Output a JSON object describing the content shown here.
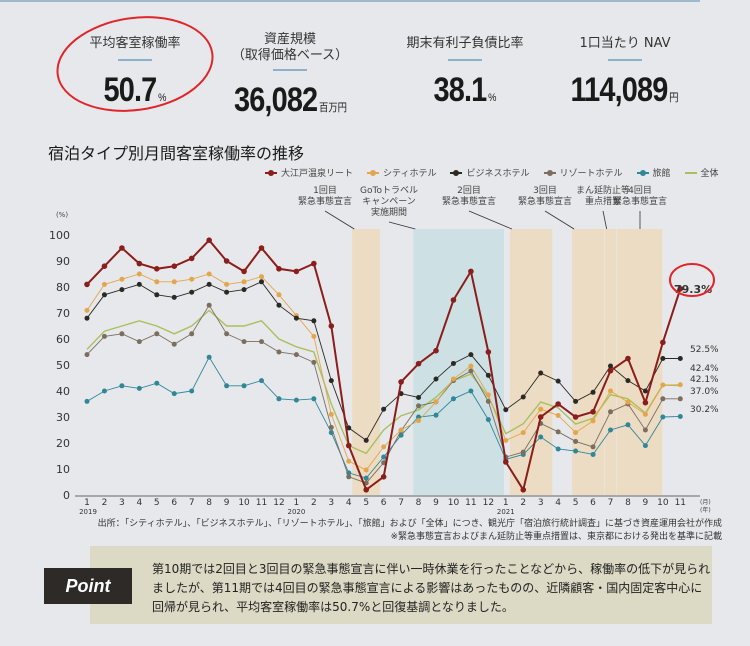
{
  "kpis": [
    {
      "label": "平均客室稼働率",
      "value": "50.7",
      "unit": "%"
    },
    {
      "label": "資産規模\n（取得価格ベース）",
      "value": "36,082",
      "unit": "百万円"
    },
    {
      "label": "期末有利子負債比率",
      "value": "38.1",
      "unit": "%"
    },
    {
      "label": "1口当たり NAV",
      "value": "114,089",
      "unit": "円"
    }
  ],
  "chart_data": {
    "type": "line",
    "title": "宿泊タイプ別月間客室稼働率の推移",
    "ylabel": "(%)",
    "ylim": [
      0,
      100
    ],
    "y_ticks": [
      "0",
      "10",
      "20",
      "30",
      "40",
      "50",
      "60",
      "70",
      "80",
      "90",
      "100"
    ],
    "x_tick_labels": [
      "1",
      "2",
      "3",
      "4",
      "5",
      "6",
      "7",
      "8",
      "9",
      "10",
      "11",
      "12",
      "1",
      "2",
      "3",
      "4",
      "5",
      "6",
      "7",
      "8",
      "9",
      "10",
      "11",
      "12",
      "1",
      "2",
      "3",
      "4",
      "5",
      "6",
      "7",
      "8",
      "9",
      "10",
      "11"
    ],
    "x_unit": "(月)",
    "year_unit": "(年)",
    "year_labels": [
      {
        "label": "2019",
        "at": 0
      },
      {
        "label": "2020",
        "at": 12
      },
      {
        "label": "2021",
        "at": 24
      }
    ],
    "series": [
      {
        "name": "大江戸温泉リート",
        "color": "#8b1d1a",
        "markers": true,
        "values": [
          81,
          88,
          95,
          89,
          87,
          88,
          91,
          98,
          90,
          86,
          95,
          87,
          86,
          89,
          65,
          19,
          2,
          7,
          43.5,
          50.5,
          55.5,
          75,
          86,
          55,
          12.7,
          2,
          30,
          35,
          30,
          32,
          47.8,
          52.5,
          35.5,
          58.7,
          79.3
        ]
      },
      {
        "name": "シティホテル",
        "color": "#e3a64a",
        "markers": true,
        "values": [
          71,
          81,
          83,
          85,
          82,
          82,
          83,
          85,
          81,
          82,
          84,
          77,
          69,
          61,
          31,
          13,
          9.6,
          18.5,
          25,
          28.6,
          35.8,
          44.6,
          49.6,
          38.5,
          21,
          24,
          33,
          30.6,
          24,
          28.5,
          40,
          35.7,
          31,
          42.3,
          42.4
        ]
      },
      {
        "name": "ビジネスホテル",
        "color": "#2b2a22",
        "markers": true,
        "values": [
          68,
          77,
          79,
          81,
          77,
          76,
          78,
          81,
          78,
          79,
          82,
          73,
          68,
          67,
          44,
          25.8,
          21,
          33,
          39,
          37.5,
          44.6,
          50.6,
          54,
          46,
          32.8,
          37.7,
          46.9,
          43.8,
          36,
          39.5,
          49.6,
          44,
          40,
          52.5,
          52.5
        ]
      },
      {
        "name": "リゾートホテル",
        "color": "#7b6e5e",
        "markers": true,
        "values": [
          54,
          61,
          62,
          59,
          62,
          58,
          62,
          73,
          62,
          59,
          59,
          55,
          54,
          51,
          26,
          7,
          4.6,
          12.4,
          24.7,
          34.3,
          35.8,
          44,
          47.7,
          36,
          14.6,
          16.5,
          27.5,
          24.3,
          20.6,
          18.5,
          32,
          35,
          25,
          37,
          37.0
        ]
      },
      {
        "name": "旅館",
        "color": "#2f8797",
        "markers": true,
        "values": [
          36,
          40,
          42,
          41,
          43,
          39,
          40,
          53,
          42,
          42,
          44,
          37,
          36.5,
          37,
          24,
          8.5,
          6.5,
          14.6,
          23,
          30,
          30.7,
          37,
          40,
          29,
          13.7,
          15.6,
          22.3,
          17.7,
          16.9,
          15.6,
          25,
          27,
          19,
          30,
          30.2
        ]
      },
      {
        "name": "全体",
        "color": "#a9c05c",
        "markers": false,
        "values": [
          56,
          63,
          65,
          67,
          65,
          62,
          65,
          71,
          65,
          65,
          67,
          60,
          57,
          55,
          35,
          19,
          16,
          25,
          30.5,
          32.7,
          37.6,
          44,
          46.5,
          37.8,
          23.6,
          27.4,
          35.8,
          33.5,
          27.3,
          29.5,
          38.6,
          37,
          31.5,
          42.3,
          42.1
        ]
      }
    ],
    "end_labels": [
      "79.3%",
      "52.5%",
      "42.4%",
      "42.1%",
      "37.0%",
      "30.2%"
    ],
    "bands": [
      {
        "label": "1回目\n緊急事態宣言",
        "start": "2020-04-07",
        "end": "2020-05-25",
        "color": "#ecdcc4"
      },
      {
        "label": "GoToトラベル\nキャンペーン\n実施期間",
        "start": "2020-07-22",
        "end": "2020-12-28",
        "color": "#cde0e4"
      },
      {
        "label": "2回目\n緊急事態宣言",
        "start": "2021-01-08",
        "end": "2021-03-21",
        "color": "#ecdcc4"
      },
      {
        "label": "3回目\n緊急事態宣言",
        "start": "2021-04-25",
        "end": "2021-06-20",
        "color": "#ecdcc4"
      },
      {
        "label": "まん延防止等\n重点措置",
        "start": "2021-06-21",
        "end": "2021-07-11",
        "color": "#ecdcc4"
      },
      {
        "label": "4回目\n緊急事態宣言",
        "start": "2021-07-12",
        "end": "2021-09-30",
        "color": "#ecdcc4"
      }
    ],
    "grid": false,
    "legend_position": "top-right"
  },
  "source_note": "出所：「シティホテル」、「ビジネスホテル」、「リゾートホテル」、「旅館」および「全体」につき、観光庁「宿泊旅行統計調査」に基づき資産運用会社が作成",
  "footnote": "※緊急事態宣言およびまん延防止等重点措置は、東京都における発出を基準に記載",
  "point": {
    "tag": "Point",
    "text": "第10期では2回目と3回目の緊急事態宣言に伴い一時休業を行ったことなどから、稼働率の低下が見られましたが、第11期では4回目の緊急事態宣言による影響はあったものの、近隣顧客・国内固定客中心に回帰が見られ、平均客室稼働率は50.7%と回復基調となりました。"
  },
  "highlight_color": "#e0262b"
}
